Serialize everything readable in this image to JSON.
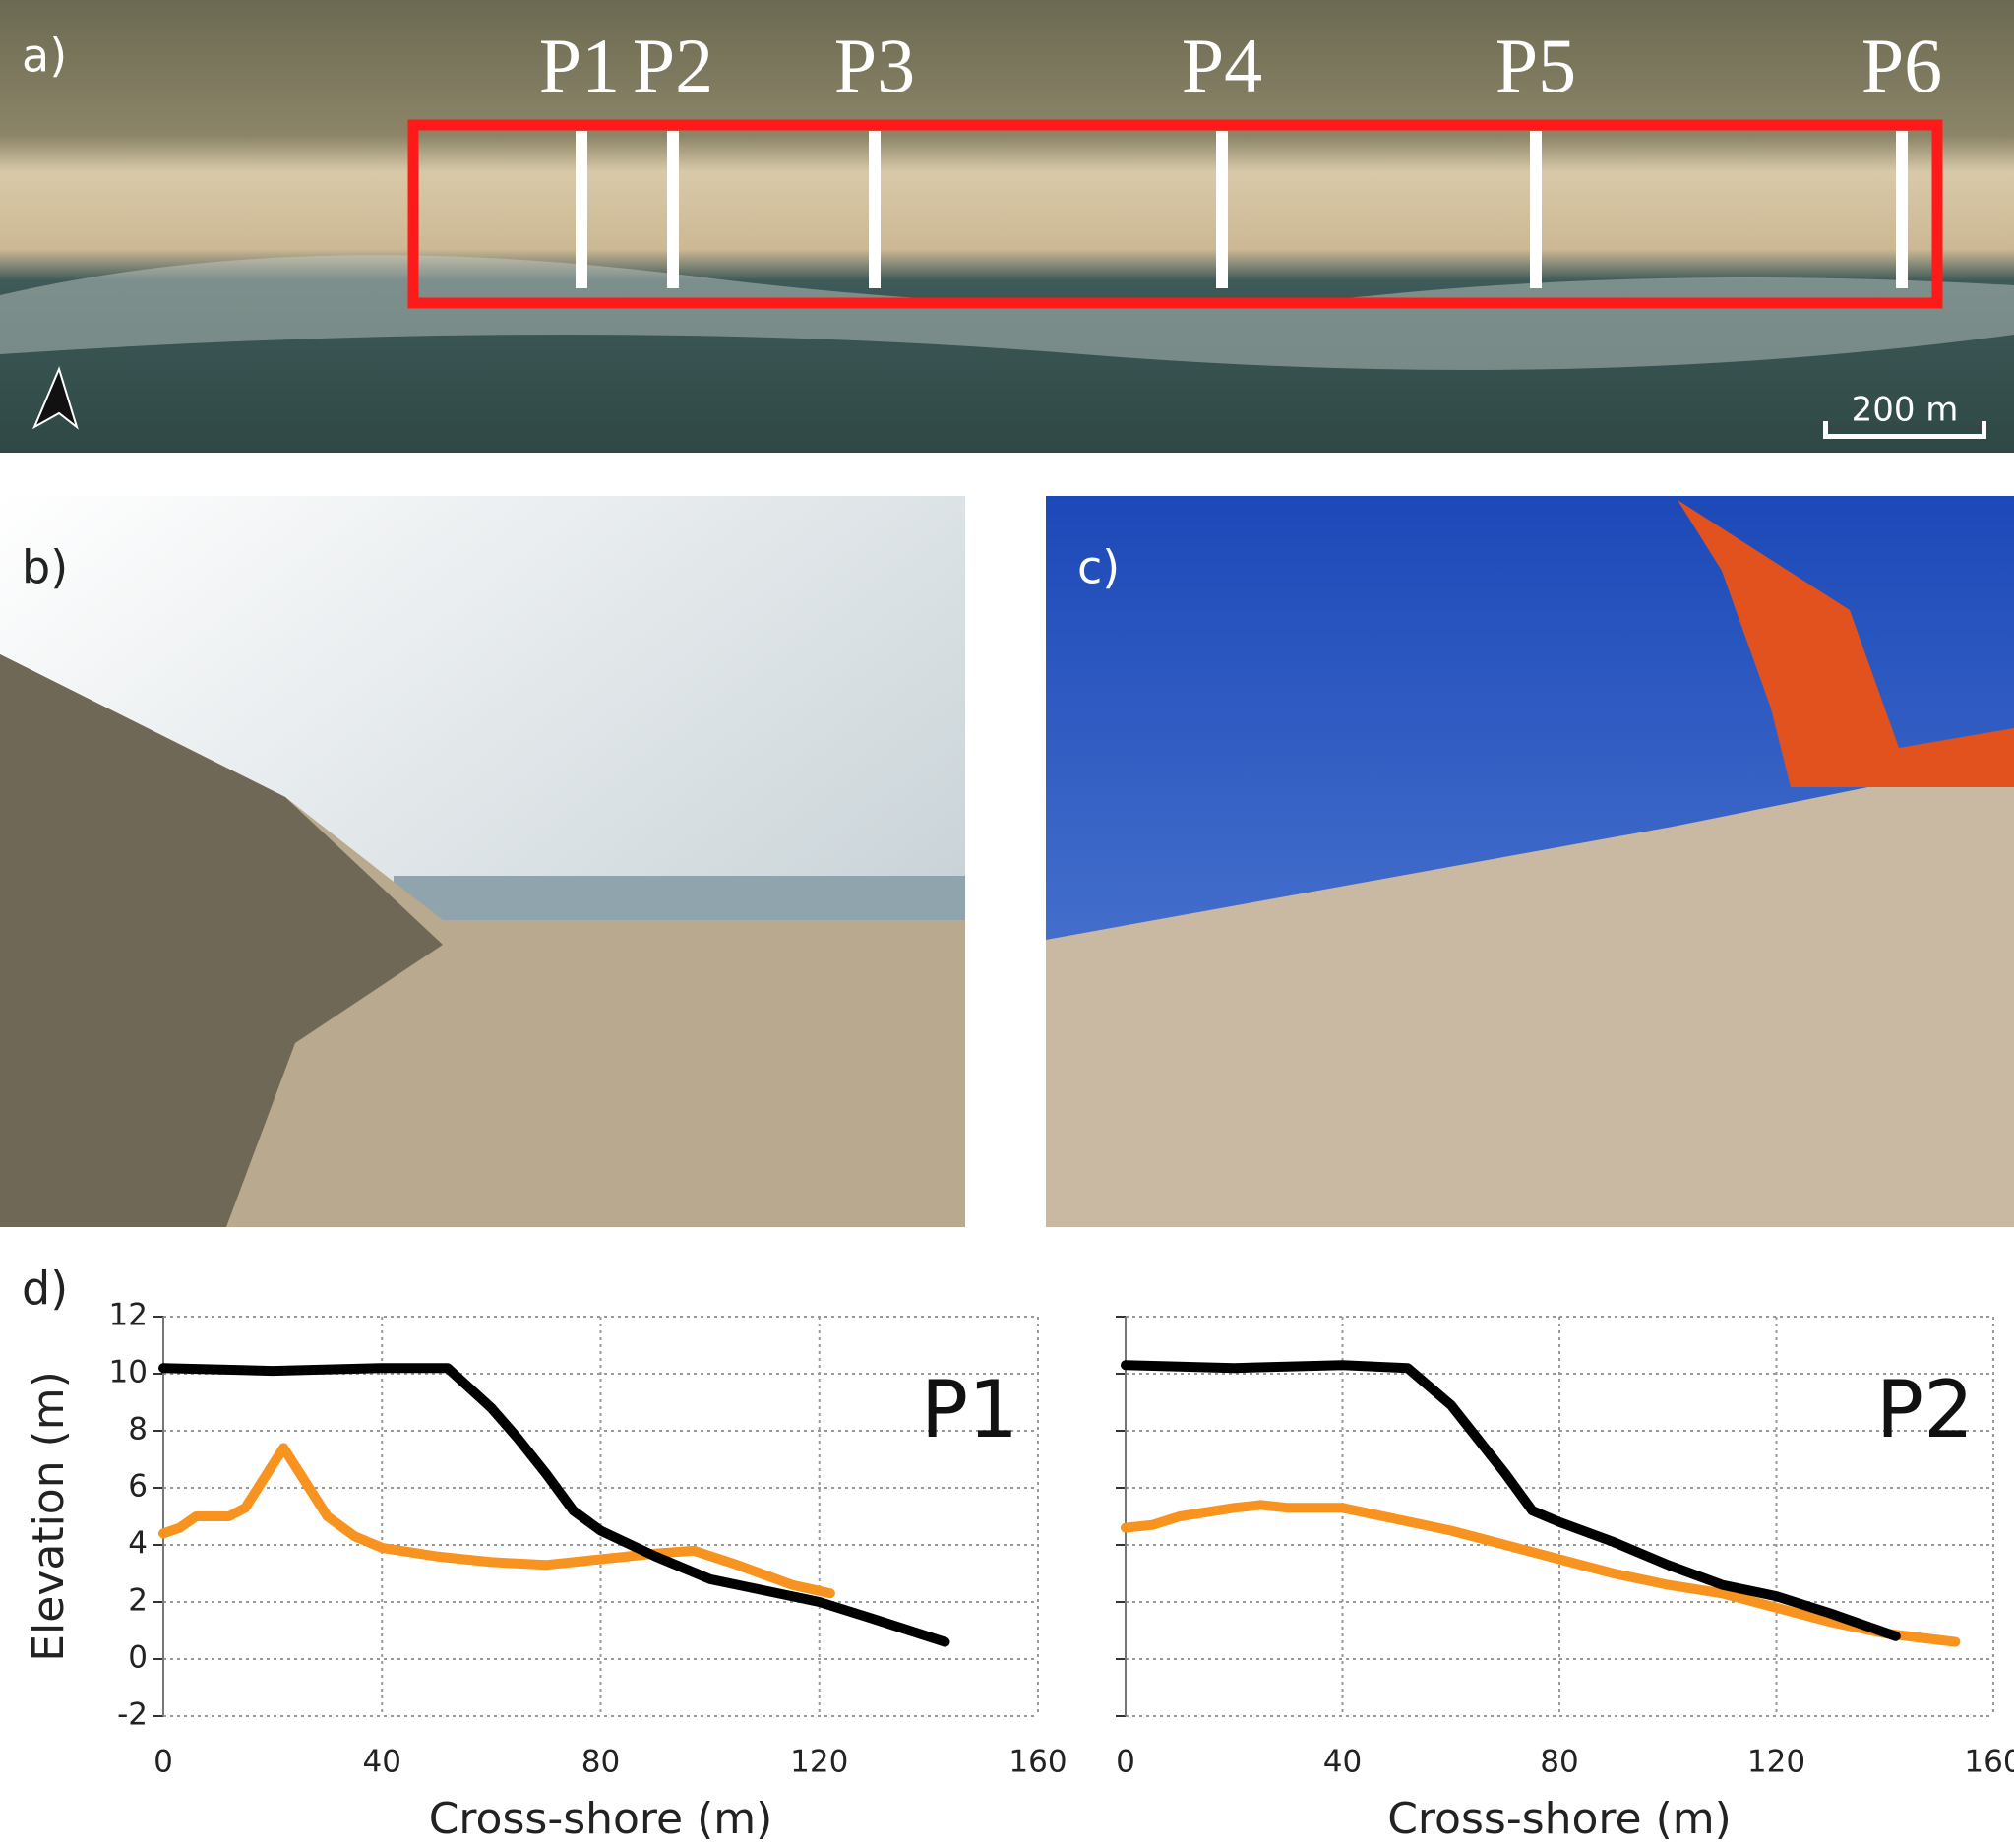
{
  "panels": {
    "a": {
      "label": "a)",
      "profiles": [
        "P1",
        "P2",
        "P3",
        "P4",
        "P5",
        "P6"
      ],
      "scale_bar": "200 m"
    },
    "b": {
      "label": "b)"
    },
    "c": {
      "label": "c)"
    },
    "d": {
      "label": "d)"
    }
  },
  "chart_data": [
    {
      "type": "line",
      "annotation": "P1",
      "xlabel": "Cross-shore (m)",
      "ylabel": "Elevation (m)",
      "xlim": [
        0,
        160
      ],
      "xticks": [
        0,
        40,
        80,
        120,
        160
      ],
      "ylim": [
        -2,
        12
      ],
      "yticks": [
        -2,
        0,
        2,
        4,
        6,
        8,
        10,
        12
      ],
      "grid": true,
      "series": [
        {
          "color": "#f7931e",
          "x": [
            0,
            3,
            6,
            9,
            12,
            15,
            18,
            22,
            25,
            30,
            35,
            40,
            50,
            60,
            70,
            80,
            90,
            97,
            105,
            115,
            122
          ],
          "values": [
            4.4,
            4.6,
            5.0,
            5.0,
            5.0,
            5.3,
            6.2,
            7.4,
            6.5,
            5.0,
            4.3,
            3.9,
            3.6,
            3.4,
            3.3,
            3.5,
            3.7,
            3.8,
            3.3,
            2.6,
            2.3
          ]
        },
        {
          "color": "#000000",
          "x": [
            0,
            20,
            40,
            52,
            60,
            65,
            70,
            75,
            80,
            90,
            100,
            110,
            120,
            130,
            143
          ],
          "values": [
            10.2,
            10.1,
            10.2,
            10.2,
            8.8,
            7.7,
            6.5,
            5.2,
            4.5,
            3.6,
            2.8,
            2.4,
            2.0,
            1.4,
            0.6
          ]
        }
      ]
    },
    {
      "type": "line",
      "annotation": "P2",
      "xlabel": "Cross-shore (m)",
      "xlim": [
        0,
        160
      ],
      "xticks": [
        0,
        40,
        80,
        120,
        160
      ],
      "ylim": [
        -2,
        12
      ],
      "yticks": [
        -2,
        0,
        2,
        4,
        6,
        8,
        10,
        12
      ],
      "grid": true,
      "series": [
        {
          "color": "#f7931e",
          "x": [
            0,
            5,
            10,
            20,
            25,
            30,
            40,
            50,
            60,
            70,
            80,
            90,
            100,
            110,
            120,
            130,
            140,
            153
          ],
          "values": [
            4.6,
            4.7,
            5.0,
            5.3,
            5.4,
            5.3,
            5.3,
            4.9,
            4.5,
            4.0,
            3.5,
            3.0,
            2.6,
            2.3,
            1.8,
            1.3,
            0.9,
            0.6
          ]
        },
        {
          "color": "#000000",
          "x": [
            0,
            20,
            40,
            52,
            60,
            70,
            75,
            80,
            90,
            100,
            110,
            120,
            130,
            142
          ],
          "values": [
            10.3,
            10.2,
            10.3,
            10.2,
            8.9,
            6.5,
            5.2,
            4.8,
            4.1,
            3.3,
            2.6,
            2.2,
            1.6,
            0.8
          ]
        }
      ]
    }
  ]
}
